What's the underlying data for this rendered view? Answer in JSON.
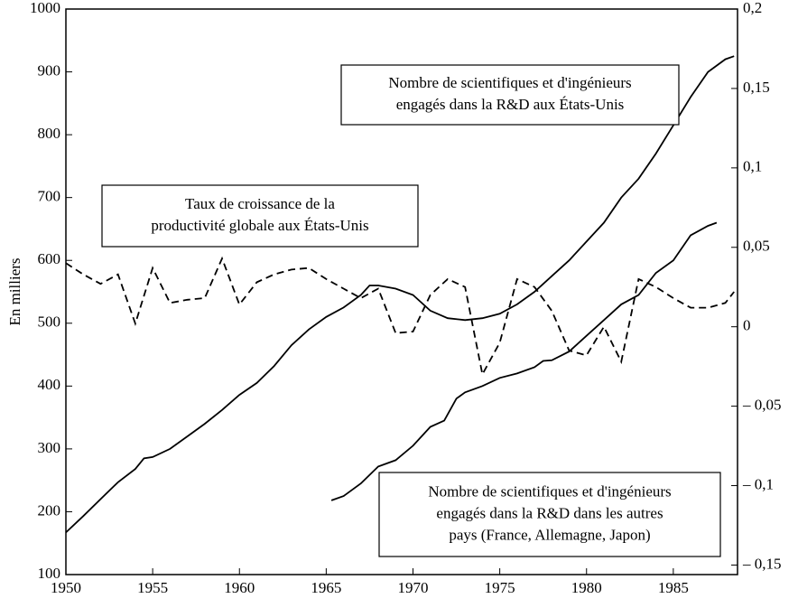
{
  "chart_data": {
    "type": "line",
    "ylabel": "En milliers",
    "xlim": [
      1950,
      1988.7
    ],
    "xticks": [
      1950,
      1955,
      1960,
      1965,
      1970,
      1975,
      1980,
      1985
    ],
    "ylim": [
      100,
      1000
    ],
    "yticks": [
      100,
      200,
      300,
      400,
      500,
      600,
      700,
      800,
      900,
      1000
    ],
    "y2lim": [
      -0.156,
      0.2
    ],
    "y2ticks": [
      {
        "value": -0.15,
        "label": "– 0,15"
      },
      {
        "value": -0.1,
        "label": "– 0,1"
      },
      {
        "value": -0.05,
        "label": "– 0,05"
      },
      0,
      {
        "value": 0.05,
        "label": "0,05"
      },
      {
        "value": 0.1,
        "label": "0,1"
      },
      {
        "value": 0.15,
        "label": "0,15"
      },
      {
        "value": 0.2,
        "label": "0,2"
      }
    ],
    "series": [
      {
        "color": "#000000",
        "dashed": false,
        "x": [
          1950,
          1951,
          1952,
          1953,
          1954,
          1954.5,
          1955,
          1956,
          1957,
          1958,
          1959,
          1960,
          1961,
          1962,
          1963,
          1964,
          1965,
          1966,
          1967,
          1967.5,
          1968,
          1969,
          1970,
          1971,
          1972,
          1973,
          1974,
          1975,
          1976,
          1977,
          1978,
          1979,
          1980,
          1981,
          1982,
          1983,
          1984,
          1985,
          1986,
          1987,
          1988,
          1988.5
        ],
        "values": [
          167,
          193,
          220,
          247,
          268,
          285,
          287,
          300,
          320,
          340,
          362,
          386,
          405,
          432,
          465,
          490,
          510,
          525,
          545,
          560,
          560,
          555,
          545,
          520,
          508,
          505,
          508,
          515,
          530,
          550,
          575,
          600,
          630,
          660,
          700,
          730,
          770,
          815,
          860,
          900,
          920,
          925
        ]
      },
      {
        "color": "#000000",
        "dashed": false,
        "x": [
          1965.3,
          1966,
          1967,
          1968,
          1969,
          1970,
          1971,
          1971.8,
          1972.5,
          1973,
          1974,
          1975,
          1976,
          1977,
          1977.5,
          1978,
          1979,
          1980,
          1981,
          1982,
          1983,
          1984,
          1985,
          1986,
          1987,
          1987.5
        ],
        "values": [
          218,
          225,
          245,
          272,
          282,
          305,
          335,
          345,
          380,
          390,
          400,
          413,
          420,
          430,
          440,
          441,
          455,
          480,
          505,
          530,
          545,
          580,
          600,
          640,
          655,
          660
        ]
      },
      {
        "color": "#000000",
        "dashed": true,
        "axis": "y2",
        "x": [
          1950,
          1951,
          1952,
          1953,
          1954,
          1955,
          1956,
          1957,
          1958,
          1959,
          1960,
          1961,
          1962,
          1963,
          1964,
          1965,
          1966,
          1967,
          1968,
          1969,
          1970,
          1971,
          1972,
          1973,
          1974,
          1975,
          1976,
          1977,
          1978,
          1979,
          1980,
          1981,
          1982,
          1983,
          1984,
          1985,
          1986,
          1987,
          1988,
          1988.5
        ],
        "values": [
          0.04,
          0.033,
          0.027,
          0.033,
          0.002,
          0.037,
          0.015,
          0.017,
          0.018,
          0.043,
          0.014,
          0.028,
          0.033,
          0.036,
          0.037,
          0.03,
          0.024,
          0.018,
          0.024,
          -0.004,
          -0.003,
          0.02,
          0.03,
          0.025,
          -0.03,
          -0.01,
          0.03,
          0.025,
          0.01,
          -0.015,
          -0.018,
          0,
          -0.022,
          0.03,
          0.025,
          0.018,
          0.012,
          0.012,
          0.015,
          0.022
        ]
      }
    ],
    "annotations": [
      {
        "lines": [
          "Nombre de scientifiques et d'ingénieurs",
          "engagés dans la R&D aux États-Unis"
        ]
      },
      {
        "lines": [
          "Taux de croissance de la",
          "productivité globale aux États-Unis"
        ]
      },
      {
        "lines": [
          "Nombre de scientifiques et d'ingénieurs",
          "engagés dans la R&D dans les autres",
          "pays (France, Allemagne, Japon)"
        ]
      }
    ]
  }
}
